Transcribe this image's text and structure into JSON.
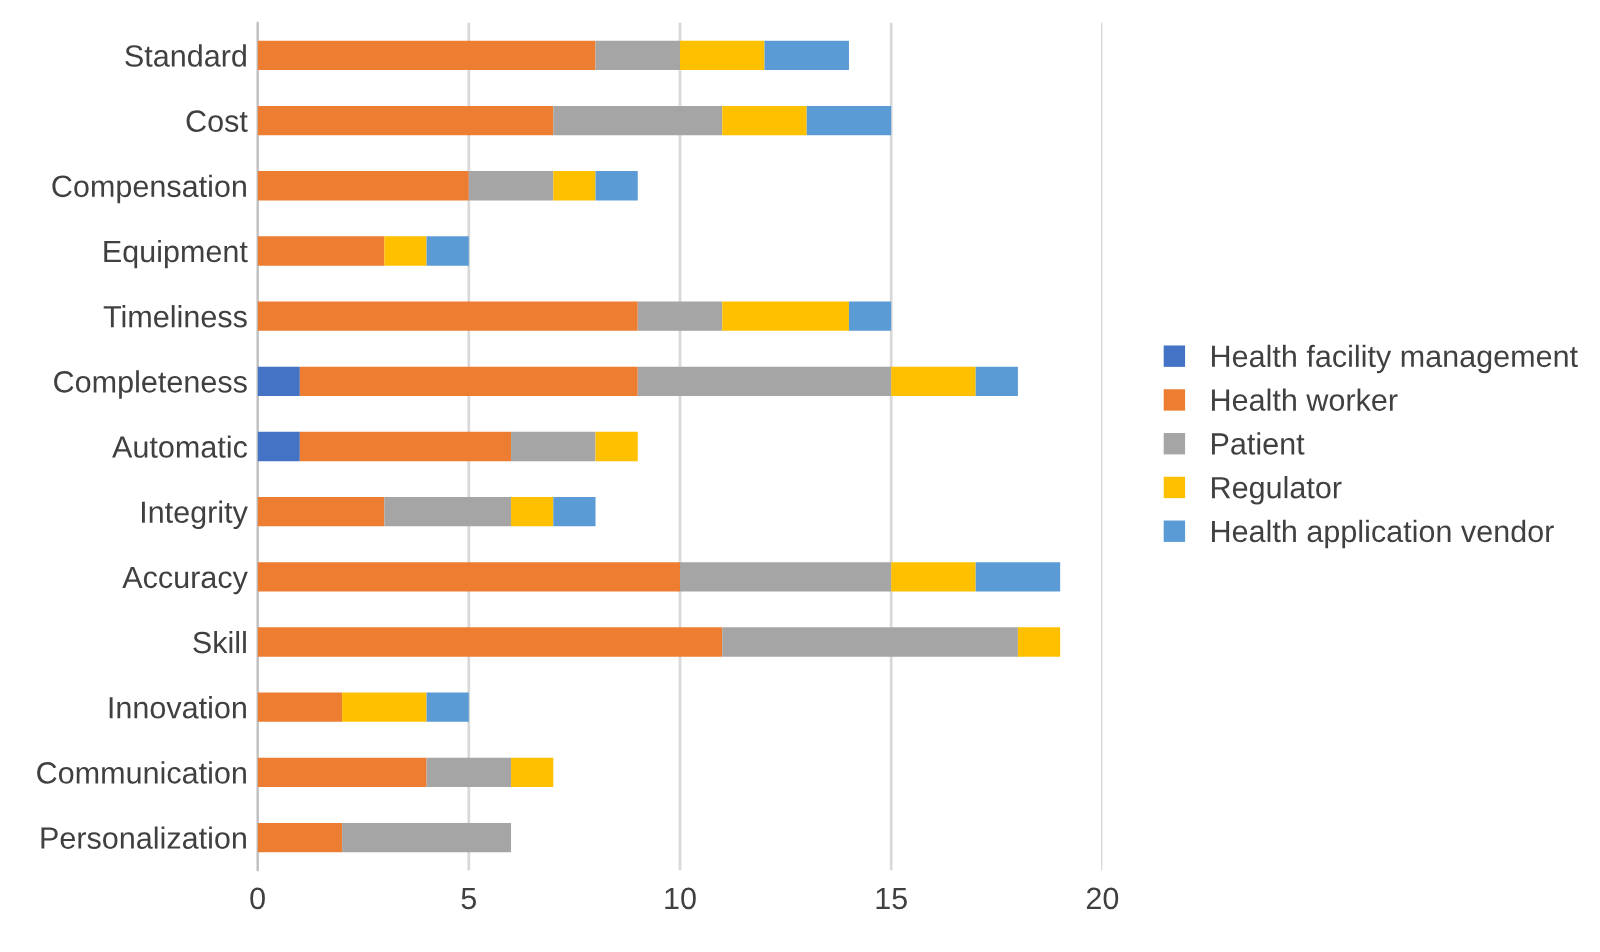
{
  "chart_data": {
    "type": "bar",
    "orientation": "horizontal",
    "stacked": true,
    "categories": [
      "Standard",
      "Cost",
      "Compensation",
      "Equipment",
      "Timeliness",
      "Completeness",
      "Automatic",
      "Integrity",
      "Accuracy",
      "Skill",
      "Innovation",
      "Communication",
      "Personalization"
    ],
    "series": [
      {
        "name": "Health facility management",
        "color": "#4472c4",
        "values": [
          0,
          0,
          0,
          0,
          0,
          1,
          1,
          0,
          0,
          0,
          0,
          0,
          0
        ]
      },
      {
        "name": "Health worker",
        "color": "#ed7d31",
        "values": [
          8,
          7,
          5,
          3,
          9,
          8,
          5,
          3,
          10,
          11,
          2,
          4,
          2
        ]
      },
      {
        "name": "Patient",
        "color": "#a5a5a5",
        "values": [
          2,
          4,
          2,
          0,
          2,
          6,
          2,
          3,
          5,
          7,
          0,
          2,
          4
        ]
      },
      {
        "name": "Regulator",
        "color": "#ffc000",
        "values": [
          2,
          2,
          1,
          1,
          3,
          2,
          1,
          1,
          2,
          1,
          2,
          1,
          0
        ]
      },
      {
        "name": "Health application vendor",
        "color": "#5b9bd5",
        "values": [
          2,
          2,
          1,
          1,
          1,
          1,
          0,
          1,
          2,
          0,
          1,
          0,
          0
        ]
      }
    ],
    "xlim": [
      0,
      20
    ],
    "xticks": [
      0,
      5,
      10,
      15,
      20
    ],
    "grid": "x",
    "legend": "right"
  }
}
